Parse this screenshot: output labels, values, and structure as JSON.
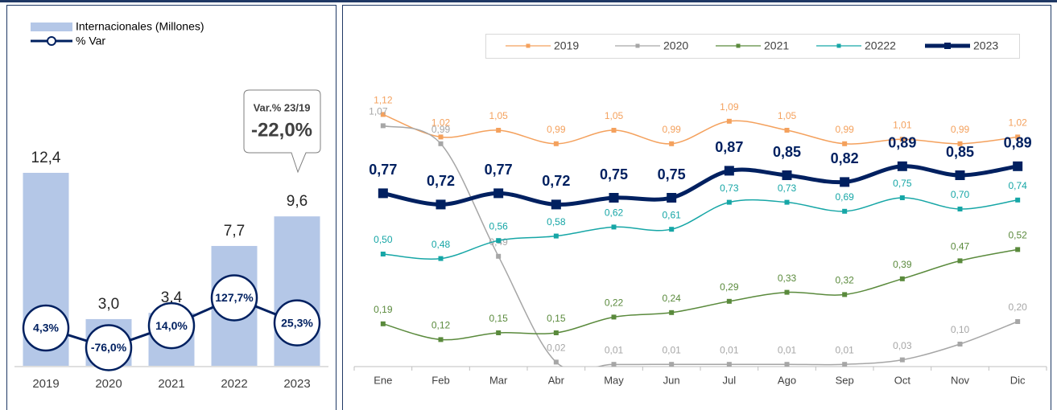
{
  "chart_data": [
    {
      "type": "bar",
      "categories": [
        "2019",
        "2020",
        "2021",
        "2022",
        "2023"
      ],
      "series": [
        {
          "name": "Internacionales (Millones)",
          "type": "bar",
          "color": "#b4c7e7",
          "values": [
            12.4,
            3.0,
            3.4,
            7.7,
            9.6
          ],
          "value_labels": [
            "12,4",
            "3,0",
            "3,4",
            "7,7",
            "9,6"
          ]
        },
        {
          "name": "% Var",
          "type": "line",
          "axis": "y2",
          "color": "#002060",
          "values": [
            4.3,
            -76.0,
            14.0,
            127.7,
            25.3
          ],
          "value_labels": [
            "4,3%",
            "-76,0%",
            "14,0%",
            "127,7%",
            "25,3%"
          ]
        }
      ],
      "ylim": [
        0,
        14
      ],
      "y2lim": [
        -150,
        740
      ],
      "annotations": [
        "Var.% 23/19",
        "-22,0%"
      ]
    },
    {
      "type": "line",
      "categories": [
        "Ene",
        "Feb",
        "Mar",
        "Abr",
        "May",
        "Jun",
        "Jul",
        "Ago",
        "Sep",
        "Oct",
        "Nov",
        "Dic"
      ],
      "series": [
        {
          "name": "2019",
          "color": "#f4a15d",
          "values": [
            1.12,
            1.02,
            1.05,
            0.99,
            1.05,
            0.99,
            1.09,
            1.05,
            0.99,
            1.01,
            0.99,
            1.02
          ],
          "value_labels": [
            "1,12",
            "1,02",
            "1,05",
            "0,99",
            "1,05",
            "0,99",
            "1,09",
            "1,05",
            "0,99",
            "1,01",
            "0,99",
            "1,02"
          ]
        },
        {
          "name": "2020",
          "color": "#a6a6a6",
          "values": [
            1.07,
            0.99,
            0.49,
            0.02,
            0.01,
            0.01,
            0.01,
            0.01,
            0.01,
            0.03,
            0.1,
            0.2
          ],
          "value_labels": [
            "1,07",
            "0,99",
            "0,49",
            "0,02",
            "0,01",
            "0,01",
            "0,01",
            "0,01",
            "0,01",
            "0,03",
            "0,10",
            "0,20"
          ]
        },
        {
          "name": "2021",
          "color": "#5a8a3c",
          "values": [
            0.19,
            0.12,
            0.15,
            0.15,
            0.22,
            0.24,
            0.29,
            0.33,
            0.32,
            0.39,
            0.47,
            0.52
          ],
          "value_labels": [
            "0,19",
            "0,12",
            "0,15",
            "0,15",
            "0,22",
            "0,24",
            "0,29",
            "0,33",
            "0,32",
            "0,39",
            "0,47",
            "0,52"
          ]
        },
        {
          "name": "20222",
          "color": "#16a6a6",
          "values": [
            0.5,
            0.48,
            0.56,
            0.58,
            0.62,
            0.61,
            0.73,
            0.73,
            0.69,
            0.75,
            0.7,
            0.74
          ],
          "value_labels": [
            "0,50",
            "0,48",
            "0,56",
            "0,58",
            "0,62",
            "0,61",
            "0,73",
            "0,73",
            "0,69",
            "0,75",
            "0,70",
            "0,74"
          ]
        },
        {
          "name": "2023",
          "color": "#002060",
          "values": [
            0.77,
            0.72,
            0.77,
            0.72,
            0.75,
            0.75,
            0.87,
            0.85,
            0.82,
            0.89,
            0.85,
            0.89
          ],
          "value_labels": [
            "0,77",
            "0,72",
            "0,77",
            "0,72",
            "0,75",
            "0,75",
            "0,87",
            "0,85",
            "0,82",
            "0,89",
            "0,85",
            "0,89"
          ]
        }
      ],
      "ylim": [
        0,
        1.3
      ]
    }
  ]
}
